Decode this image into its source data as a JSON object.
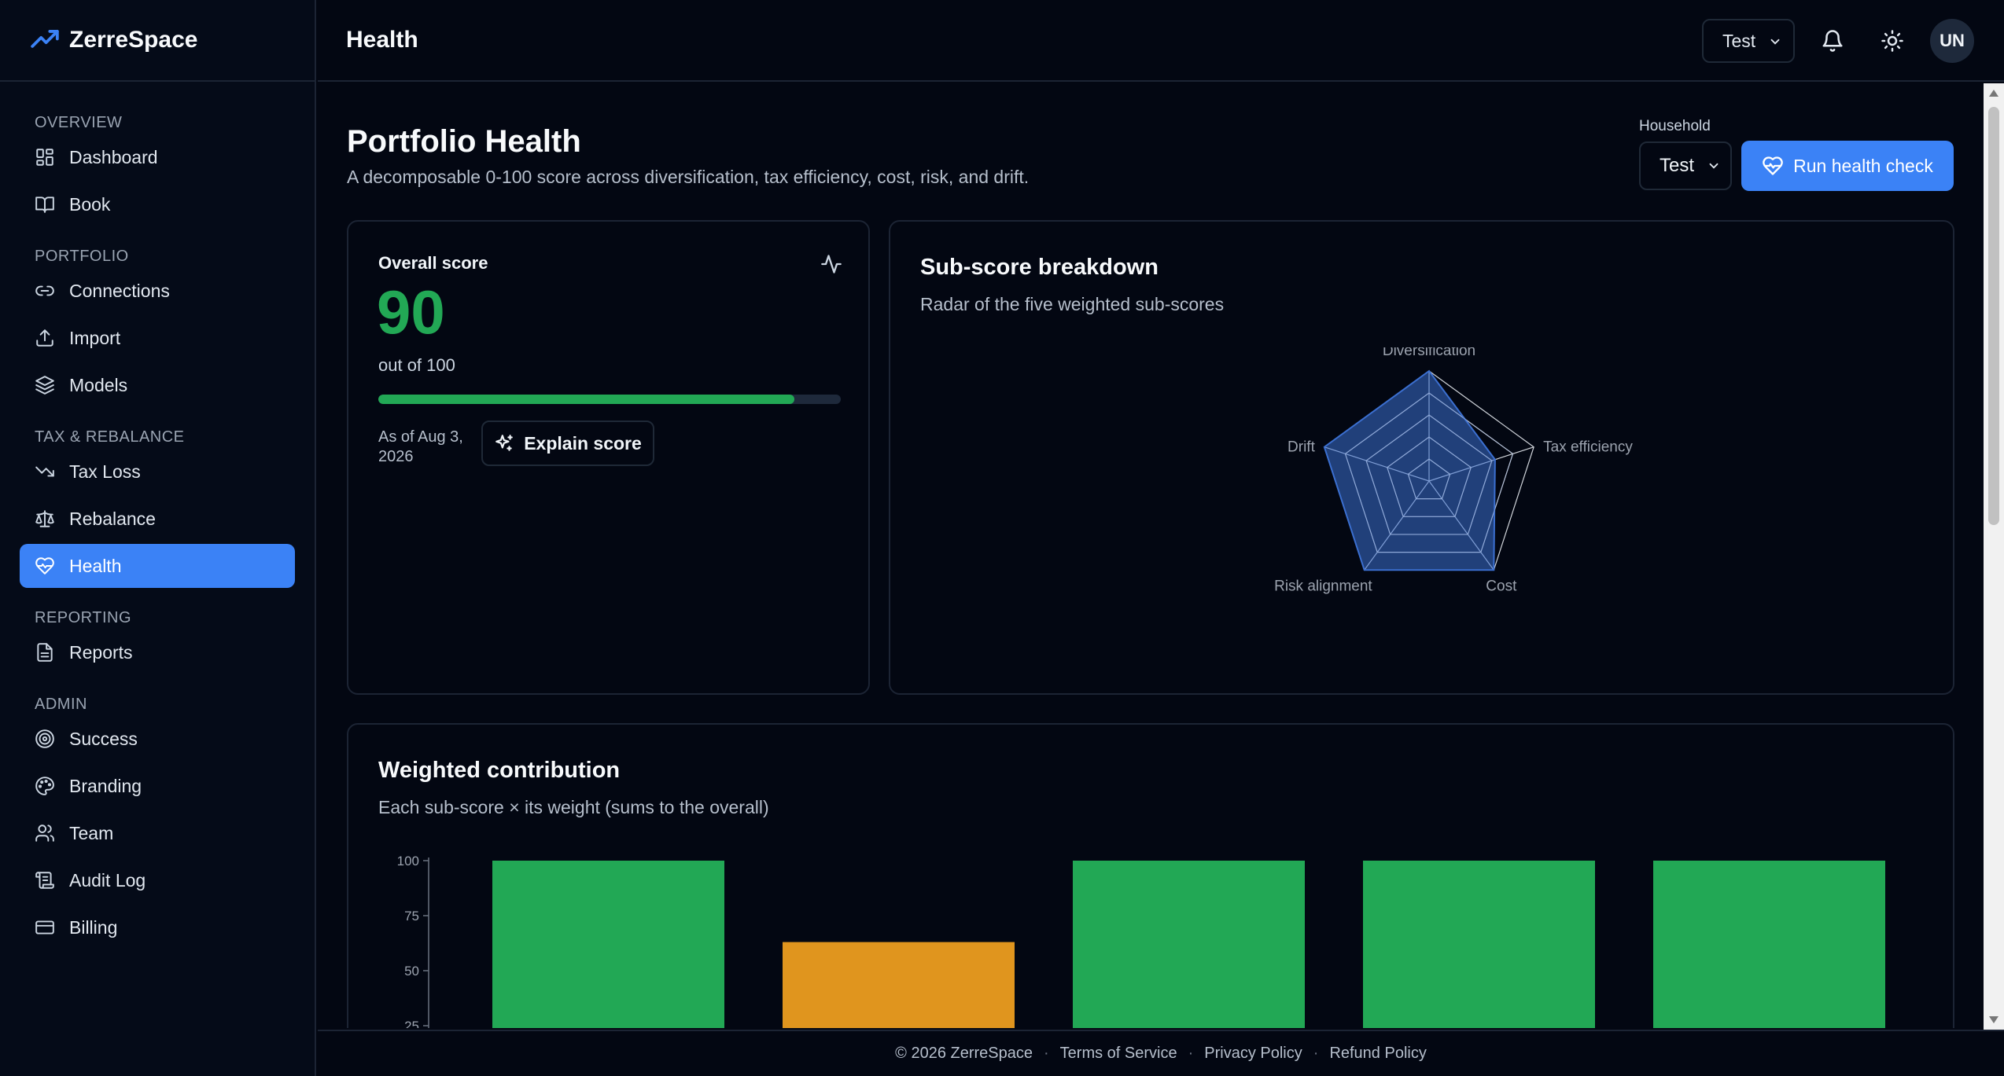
{
  "brand": {
    "name": "ZerreSpace",
    "icon": "trending-up-icon"
  },
  "sidebar": {
    "sections": [
      {
        "title": "OVERVIEW",
        "items": [
          {
            "label": "Dashboard",
            "icon": "dashboard-icon"
          },
          {
            "label": "Book",
            "icon": "book-icon"
          }
        ]
      },
      {
        "title": "PORTFOLIO",
        "items": [
          {
            "label": "Connections",
            "icon": "link-icon"
          },
          {
            "label": "Import",
            "icon": "upload-icon"
          },
          {
            "label": "Models",
            "icon": "layers-icon"
          }
        ]
      },
      {
        "title": "TAX & REBALANCE",
        "items": [
          {
            "label": "Tax Loss",
            "icon": "trending-down-icon"
          },
          {
            "label": "Rebalance",
            "icon": "scale-icon"
          },
          {
            "label": "Health",
            "icon": "heart-pulse-icon",
            "active": true
          }
        ]
      },
      {
        "title": "REPORTING",
        "items": [
          {
            "label": "Reports",
            "icon": "file-text-icon"
          }
        ]
      },
      {
        "title": "ADMIN",
        "items": [
          {
            "label": "Success",
            "icon": "target-icon"
          },
          {
            "label": "Branding",
            "icon": "palette-icon"
          },
          {
            "label": "Team",
            "icon": "users-icon"
          },
          {
            "label": "Audit Log",
            "icon": "scroll-icon"
          },
          {
            "label": "Billing",
            "icon": "credit-card-icon"
          }
        ]
      }
    ]
  },
  "header": {
    "title": "Health",
    "select_value": "Test",
    "avatar": "UN"
  },
  "page": {
    "title": "Portfolio Health",
    "subtitle": "A decomposable 0-100 score across diversification, tax efficiency, cost, risk, and drift.",
    "household_label": "Household",
    "household_value": "Test",
    "run_button": "Run health check"
  },
  "overall": {
    "label": "Overall score",
    "score": "90",
    "out_of": "out of 100",
    "progress_fraction": 0.9,
    "as_of": "As of Aug 3, 2026",
    "explain_button": "Explain score"
  },
  "radar": {
    "title": "Sub-score breakdown",
    "subtitle": "Radar of the five weighted sub-scores"
  },
  "weighted": {
    "title": "Weighted contribution",
    "subtitle": "Each sub-score × its weight (sums to the overall)"
  },
  "chart_data": [
    {
      "type": "radar",
      "axes": [
        "Diversification",
        "Tax efficiency",
        "Cost",
        "Risk alignment",
        "Drift"
      ],
      "values": [
        100,
        63,
        100,
        100,
        100
      ],
      "range": [
        0,
        100
      ],
      "color": "#3b6fd0"
    },
    {
      "type": "bar",
      "categories": [
        "",
        "",
        "",
        "",
        ""
      ],
      "values": [
        100,
        63,
        100,
        100,
        100
      ],
      "colors": [
        "#22a855",
        "#e0951e",
        "#22a855",
        "#22a855",
        "#22a855"
      ],
      "yticks": [
        100,
        75,
        50,
        25
      ],
      "ylim": [
        0,
        100
      ]
    }
  ],
  "footer": {
    "copyright": "© 2026 ZerreSpace",
    "terms": "Terms of Service",
    "privacy": "Privacy Policy",
    "refund": "Refund Policy"
  }
}
